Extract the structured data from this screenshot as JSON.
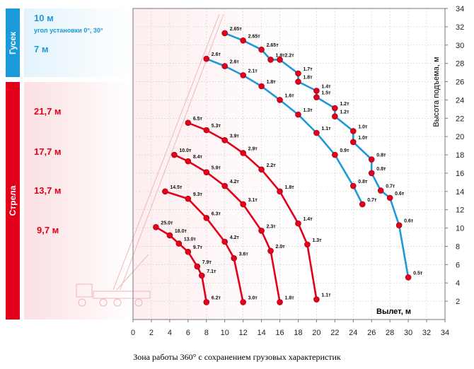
{
  "sidebar": {
    "jib": {
      "tab_label": "Гусек",
      "color": "#1a9ad9",
      "lines": [
        "10 м",
        "угол установки 0°, 30°",
        "7 м"
      ]
    },
    "boom": {
      "tab_label": "Стрела",
      "color": "#e2001a",
      "lines": [
        "21,7 м",
        "17,7 м",
        "13,7 м",
        "9,7 м"
      ]
    }
  },
  "caption": "Зона работы 360° с сохранением грузовых характеристик",
  "chart_data": {
    "type": "line",
    "xlabel": "Вылет, м",
    "ylabel": "Высота подъема, м",
    "xlim": [
      0,
      34
    ],
    "ylim": [
      0,
      34
    ],
    "xticks": [
      "0",
      "2",
      "4",
      "6",
      "8",
      "10",
      "12",
      "14",
      "16",
      "18",
      "20",
      "22",
      "24",
      "26",
      "28",
      "30",
      "32",
      "34"
    ],
    "yticks": [
      "2",
      "4",
      "6",
      "8",
      "10",
      "12",
      "14",
      "16",
      "18",
      "20",
      "22",
      "24",
      "26",
      "28",
      "30",
      "32",
      "34"
    ],
    "series": [
      {
        "group": "boom",
        "color": "#e2001a",
        "points": [
          [
            2.5,
            10.1
          ],
          [
            4,
            9.2
          ],
          [
            5,
            8.3
          ],
          [
            6,
            7.4
          ],
          [
            7,
            5.8
          ],
          [
            7.5,
            4.8
          ],
          [
            8,
            1.9
          ]
        ],
        "labels": [
          "25.0т",
          "18.0т",
          "13.0т",
          "9.7т",
          "7.9т",
          "7.1т",
          "6.2т"
        ]
      },
      {
        "group": "boom",
        "color": "#e2001a",
        "points": [
          [
            3.5,
            14
          ],
          [
            6,
            13.2
          ],
          [
            8,
            11.1
          ],
          [
            10,
            8.5
          ],
          [
            11,
            6.7
          ],
          [
            12,
            1.9
          ]
        ],
        "labels": [
          "14.5т",
          "9.3т",
          "6.3т",
          "4.2т",
          "3.6т",
          "3.0т"
        ]
      },
      {
        "group": "boom",
        "color": "#e2001a",
        "points": [
          [
            4.5,
            18
          ],
          [
            6,
            17.3
          ],
          [
            8,
            16.1
          ],
          [
            10,
            14.6
          ],
          [
            12,
            12.6
          ],
          [
            14,
            9.7
          ],
          [
            15,
            7.5
          ],
          [
            16,
            1.9
          ]
        ],
        "labels": [
          "10.0т",
          "8.4т",
          "5.9т",
          "4.2т",
          "3.1т",
          "2.3т",
          "2.0т",
          "1.8т"
        ]
      },
      {
        "group": "boom",
        "color": "#e2001a",
        "points": [
          [
            6,
            21.5
          ],
          [
            8,
            20.7
          ],
          [
            10,
            19.6
          ],
          [
            12,
            18.2
          ],
          [
            14,
            16.4
          ],
          [
            16,
            14
          ],
          [
            18,
            10.5
          ],
          [
            19,
            8.2
          ],
          [
            20,
            2.2
          ]
        ],
        "labels": [
          "6.5т",
          "5.3т",
          "3.9т",
          "2.9т",
          "2.2т",
          "1.8т",
          "1.4т",
          "1.3т",
          "1.1т"
        ]
      },
      {
        "group": "jib",
        "color": "#1a9ad9",
        "points": [
          [
            8,
            28.5
          ],
          [
            10,
            27.7
          ],
          [
            12,
            26.7
          ],
          [
            14,
            25.5
          ],
          [
            16,
            24
          ],
          [
            18,
            22.4
          ],
          [
            20,
            20.4
          ],
          [
            22,
            18
          ],
          [
            24,
            14.6
          ],
          [
            25,
            12.6
          ]
        ],
        "labels": [
          "2.6т",
          "2.6т",
          "2.1т",
          "1.8т",
          "1.6т",
          "1.3т",
          "1.1т",
          "0.9т",
          "0.8т",
          "0.7т"
        ]
      },
      {
        "group": "jib",
        "color": "#1a9ad9",
        "points": [
          [
            10,
            31.3
          ],
          [
            12,
            30.5
          ],
          [
            14,
            29.5
          ],
          [
            15,
            28.4
          ],
          [
            16,
            28.4
          ],
          [
            18,
            26.9
          ],
          [
            18,
            26
          ],
          [
            20,
            25
          ],
          [
            20,
            24.3
          ],
          [
            22,
            23.1
          ],
          [
            22,
            22.2
          ],
          [
            24,
            20.6
          ],
          [
            24,
            19.4
          ],
          [
            26,
            17.5
          ],
          [
            26,
            16
          ],
          [
            27,
            14.1
          ],
          [
            28,
            13.3
          ],
          [
            29,
            10.3
          ],
          [
            30,
            4.6
          ]
        ],
        "labels": [
          "2.65т",
          "2.65т",
          "2.65т",
          "1.8т",
          "2.2т",
          "1.7т",
          "1.8т",
          "1.4т",
          "1.5т",
          "1.2т",
          "1.2т",
          "1.0т",
          "1.0т",
          "0.8т",
          "0.8т",
          "0.7т",
          "0.6т",
          "0.6т",
          "0.5т"
        ]
      }
    ]
  }
}
